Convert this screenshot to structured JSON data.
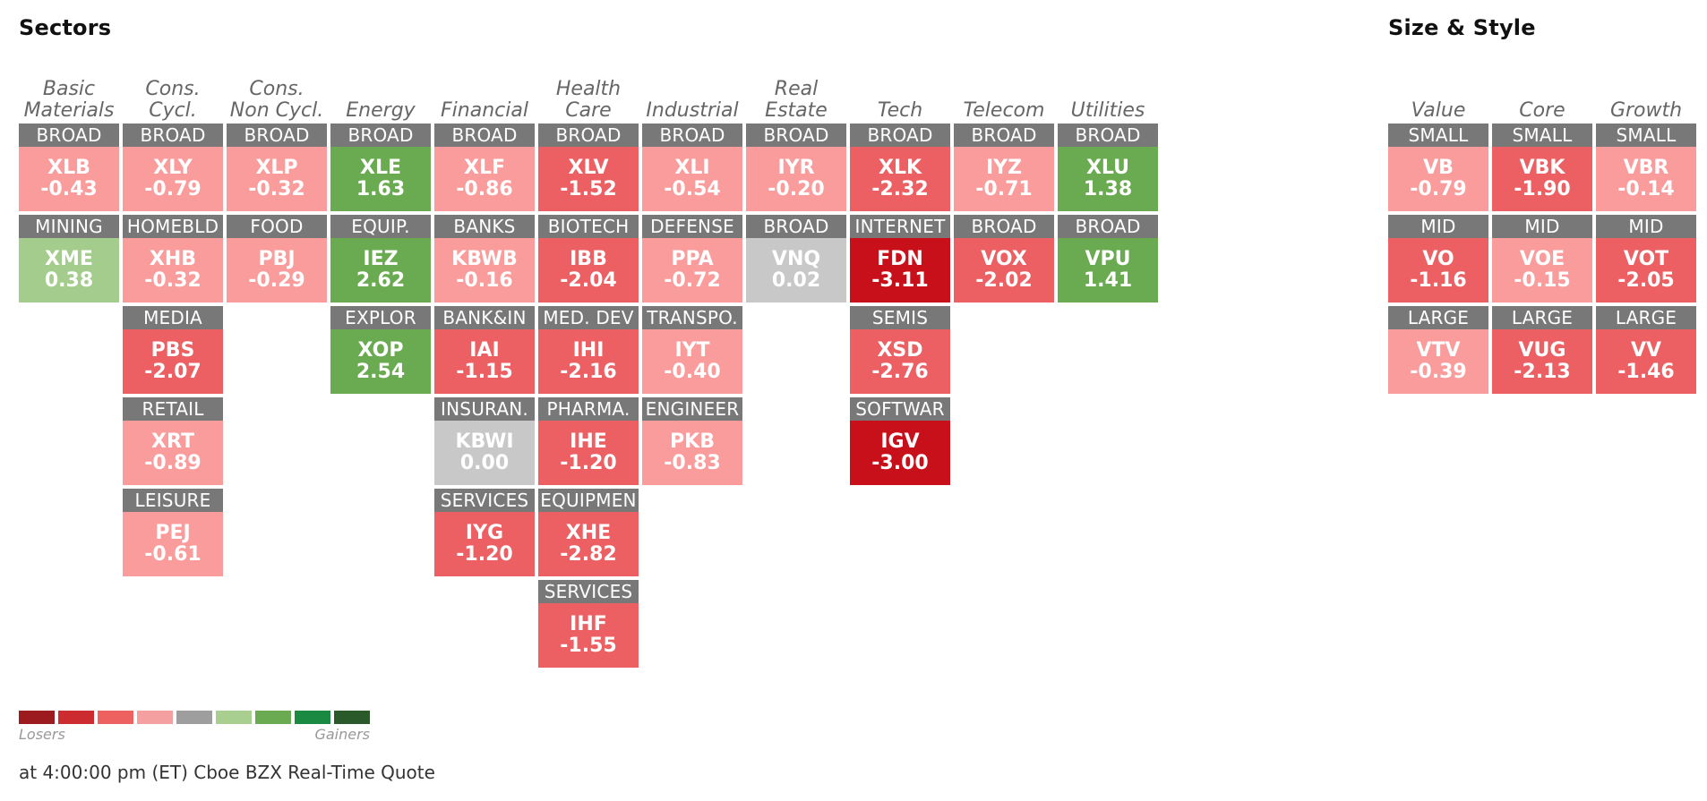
{
  "titles": {
    "sectors": "Sectors",
    "style": "Size & Style"
  },
  "colors": {
    "label_bg": "#787878",
    "scale": [
      "#9b1b1f",
      "#cc2c2f",
      "#ee6161",
      "#f5a0a0",
      "#9e9e9e",
      "#a8cf8f",
      "#6aaa50",
      "#1a8a42",
      "#2a5a2a"
    ],
    "strong_red": "#c8101a",
    "mid_red": "#ec5f62",
    "light_red": "#fb9c9c",
    "neutral": "#c8c8c8",
    "light_green": "#a4cd8d",
    "green": "#6aaa50"
  },
  "legend": {
    "losers": "Losers",
    "gainers": "Gainers"
  },
  "footer": "at 4:00:00 pm (ET) Cboe BZX Real-Time Quote",
  "chart_data": [
    {
      "type": "heatmap",
      "title": "Sectors",
      "columns": [
        {
          "header": [
            "Basic",
            "Materials"
          ],
          "tiles": [
            {
              "label": "BROAD",
              "ticker": "XLB",
              "value": "-0.43",
              "color": "#fb9c9c"
            },
            {
              "label": "MINING",
              "ticker": "XME",
              "value": "0.38",
              "color": "#a4cd8d"
            }
          ]
        },
        {
          "header": [
            "Cons.",
            "Cycl."
          ],
          "tiles": [
            {
              "label": "BROAD",
              "ticker": "XLY",
              "value": "-0.79",
              "color": "#fb9c9c"
            },
            {
              "label": "HOMEBLD",
              "ticker": "XHB",
              "value": "-0.32",
              "color": "#fb9c9c"
            },
            {
              "label": "MEDIA",
              "ticker": "PBS",
              "value": "-2.07",
              "color": "#ec5f62"
            },
            {
              "label": "RETAIL",
              "ticker": "XRT",
              "value": "-0.89",
              "color": "#fb9c9c"
            },
            {
              "label": "LEISURE",
              "ticker": "PEJ",
              "value": "-0.61",
              "color": "#fb9c9c"
            }
          ]
        },
        {
          "header": [
            "Cons.",
            "Non Cycl."
          ],
          "tiles": [
            {
              "label": "BROAD",
              "ticker": "XLP",
              "value": "-0.32",
              "color": "#fb9c9c"
            },
            {
              "label": "FOOD",
              "ticker": "PBJ",
              "value": "-0.29",
              "color": "#fb9c9c"
            }
          ]
        },
        {
          "header": [
            "",
            "Energy"
          ],
          "tiles": [
            {
              "label": "BROAD",
              "ticker": "XLE",
              "value": "1.63",
              "color": "#6aaa50"
            },
            {
              "label": "EQUIP.",
              "ticker": "IEZ",
              "value": "2.62",
              "color": "#6aaa50"
            },
            {
              "label": "EXPLOR",
              "ticker": "XOP",
              "value": "2.54",
              "color": "#6aaa50"
            }
          ]
        },
        {
          "header": [
            "",
            "Financial"
          ],
          "tiles": [
            {
              "label": "BROAD",
              "ticker": "XLF",
              "value": "-0.86",
              "color": "#fb9c9c"
            },
            {
              "label": "BANKS",
              "ticker": "KBWB",
              "value": "-0.16",
              "color": "#fb9c9c"
            },
            {
              "label": "BANK&IN",
              "ticker": "IAI",
              "value": "-1.15",
              "color": "#ec5f62"
            },
            {
              "label": "INSURAN.",
              "ticker": "KBWI",
              "value": "0.00",
              "color": "#c8c8c8"
            },
            {
              "label": "SERVICES",
              "ticker": "IYG",
              "value": "-1.20",
              "color": "#ec5f62"
            }
          ]
        },
        {
          "header": [
            "Health",
            "Care"
          ],
          "tiles": [
            {
              "label": "BROAD",
              "ticker": "XLV",
              "value": "-1.52",
              "color": "#ec5f62"
            },
            {
              "label": "BIOTECH",
              "ticker": "IBB",
              "value": "-2.04",
              "color": "#ec5f62"
            },
            {
              "label": "MED. DEV",
              "ticker": "IHI",
              "value": "-2.16",
              "color": "#ec5f62"
            },
            {
              "label": "PHARMA.",
              "ticker": "IHE",
              "value": "-1.20",
              "color": "#ec5f62"
            },
            {
              "label": "EQUIPMEN",
              "ticker": "XHE",
              "value": "-2.82",
              "color": "#ec5f62"
            },
            {
              "label": "SERVICES",
              "ticker": "IHF",
              "value": "-1.55",
              "color": "#ec5f62"
            }
          ]
        },
        {
          "header": [
            "",
            "Industrial"
          ],
          "tiles": [
            {
              "label": "BROAD",
              "ticker": "XLI",
              "value": "-0.54",
              "color": "#fb9c9c"
            },
            {
              "label": "DEFENSE",
              "ticker": "PPA",
              "value": "-0.72",
              "color": "#fb9c9c"
            },
            {
              "label": "TRANSPO.",
              "ticker": "IYT",
              "value": "-0.40",
              "color": "#fb9c9c"
            },
            {
              "label": "ENGINEER",
              "ticker": "PKB",
              "value": "-0.83",
              "color": "#fb9c9c"
            }
          ]
        },
        {
          "header": [
            "Real",
            "Estate"
          ],
          "tiles": [
            {
              "label": "BROAD",
              "ticker": "IYR",
              "value": "-0.20",
              "color": "#fb9c9c"
            },
            {
              "label": "BROAD",
              "ticker": "VNQ",
              "value": "0.02",
              "color": "#c8c8c8"
            }
          ]
        },
        {
          "header": [
            "",
            "Tech"
          ],
          "tiles": [
            {
              "label": "BROAD",
              "ticker": "XLK",
              "value": "-2.32",
              "color": "#ec5f62"
            },
            {
              "label": "INTERNET",
              "ticker": "FDN",
              "value": "-3.11",
              "color": "#c8101a"
            },
            {
              "label": "SEMIS",
              "ticker": "XSD",
              "value": "-2.76",
              "color": "#ec5f62"
            },
            {
              "label": "SOFTWAR",
              "ticker": "IGV",
              "value": "-3.00",
              "color": "#c8101a"
            }
          ]
        },
        {
          "header": [
            "",
            "Telecom"
          ],
          "tiles": [
            {
              "label": "BROAD",
              "ticker": "IYZ",
              "value": "-0.71",
              "color": "#fb9c9c"
            },
            {
              "label": "BROAD",
              "ticker": "VOX",
              "value": "-2.02",
              "color": "#ec5f62"
            }
          ]
        },
        {
          "header": [
            "",
            "Utilities"
          ],
          "tiles": [
            {
              "label": "BROAD",
              "ticker": "XLU",
              "value": "1.38",
              "color": "#6aaa50"
            },
            {
              "label": "BROAD",
              "ticker": "VPU",
              "value": "1.41",
              "color": "#6aaa50"
            }
          ]
        }
      ]
    },
    {
      "type": "heatmap",
      "title": "Size & Style",
      "columns": [
        {
          "header": [
            "",
            "Value"
          ],
          "tiles": [
            {
              "label": "SMALL",
              "ticker": "VB",
              "value": "-0.79",
              "color": "#fb9c9c"
            },
            {
              "label": "MID",
              "ticker": "VO",
              "value": "-1.16",
              "color": "#ec5f62"
            },
            {
              "label": "LARGE",
              "ticker": "VTV",
              "value": "-0.39",
              "color": "#fb9c9c"
            }
          ]
        },
        {
          "header": [
            "",
            "Core"
          ],
          "tiles": [
            {
              "label": "SMALL",
              "ticker": "VBK",
              "value": "-1.90",
              "color": "#ec5f62"
            },
            {
              "label": "MID",
              "ticker": "VOE",
              "value": "-0.15",
              "color": "#fb9c9c"
            },
            {
              "label": "LARGE",
              "ticker": "VUG",
              "value": "-2.13",
              "color": "#ec5f62"
            }
          ]
        },
        {
          "header": [
            "",
            "Growth"
          ],
          "tiles": [
            {
              "label": "SMALL",
              "ticker": "VBR",
              "value": "-0.14",
              "color": "#fb9c9c"
            },
            {
              "label": "MID",
              "ticker": "VOT",
              "value": "-2.05",
              "color": "#ec5f62"
            },
            {
              "label": "LARGE",
              "ticker": "VV",
              "value": "-1.46",
              "color": "#ec5f62"
            }
          ]
        }
      ]
    }
  ]
}
